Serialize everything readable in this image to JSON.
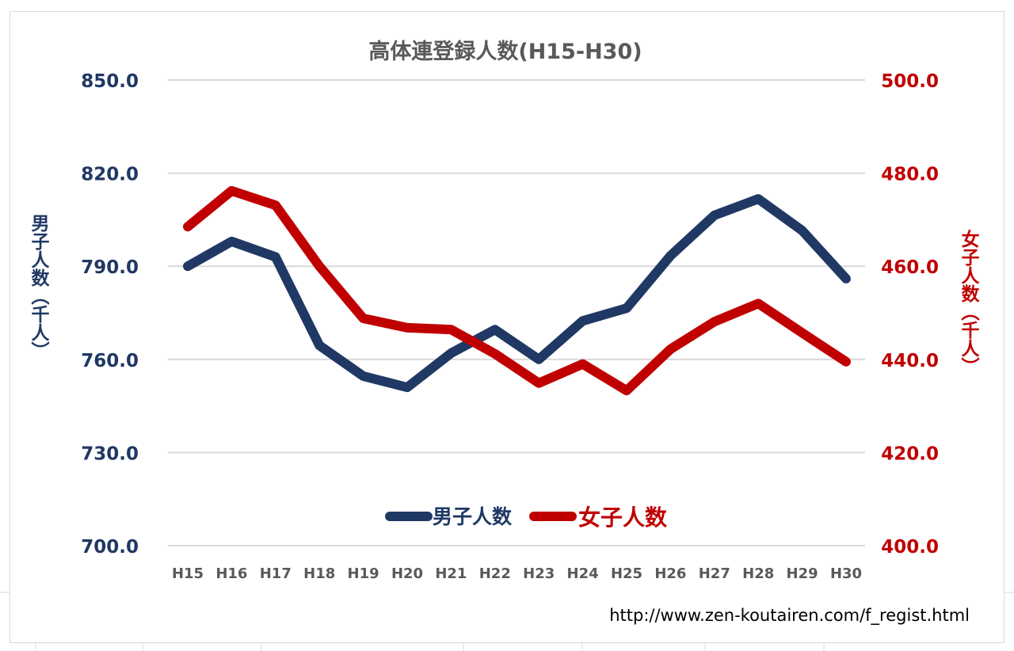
{
  "chart_data": {
    "type": "line",
    "title": "高体連登録人数(H15-H30)",
    "categories": [
      "H15",
      "H16",
      "H17",
      "H18",
      "H19",
      "H20",
      "H21",
      "H22",
      "H23",
      "H24",
      "H25",
      "H26",
      "H27",
      "H28",
      "H29",
      "H30"
    ],
    "y_left": {
      "label": "男子人数（千人）",
      "range": [
        700,
        850
      ],
      "ticks": [
        "700.0",
        "730.0",
        "760.0",
        "790.0",
        "820.0",
        "850.0"
      ],
      "color": "#203864"
    },
    "y_right": {
      "label": "女子人数（千人）",
      "range": [
        400,
        500
      ],
      "ticks": [
        "400.0",
        "420.0",
        "440.0",
        "460.0",
        "480.0",
        "500.0"
      ],
      "color": "#c00000"
    },
    "series": [
      {
        "name": "男子人数",
        "axis": "left",
        "color": "#203864",
        "values": [
          790.0,
          798.0,
          793.0,
          764.5,
          754.6,
          751.0,
          762.0,
          769.6,
          760.0,
          772.4,
          776.5,
          793.4,
          806.4,
          811.7,
          801.5,
          786.0
        ]
      },
      {
        "name": "女子人数",
        "axis": "right",
        "color": "#c00000",
        "values": [
          468.5,
          476.2,
          473.1,
          460.0,
          448.8,
          446.8,
          446.4,
          441.2,
          434.9,
          439.0,
          433.3,
          442.2,
          448.1,
          452.0,
          445.7,
          439.5
        ]
      }
    ],
    "grid": true,
    "legend_position": "bottom-center"
  },
  "source_url": "http://www.zen-koutairen.com/f_regist.html"
}
